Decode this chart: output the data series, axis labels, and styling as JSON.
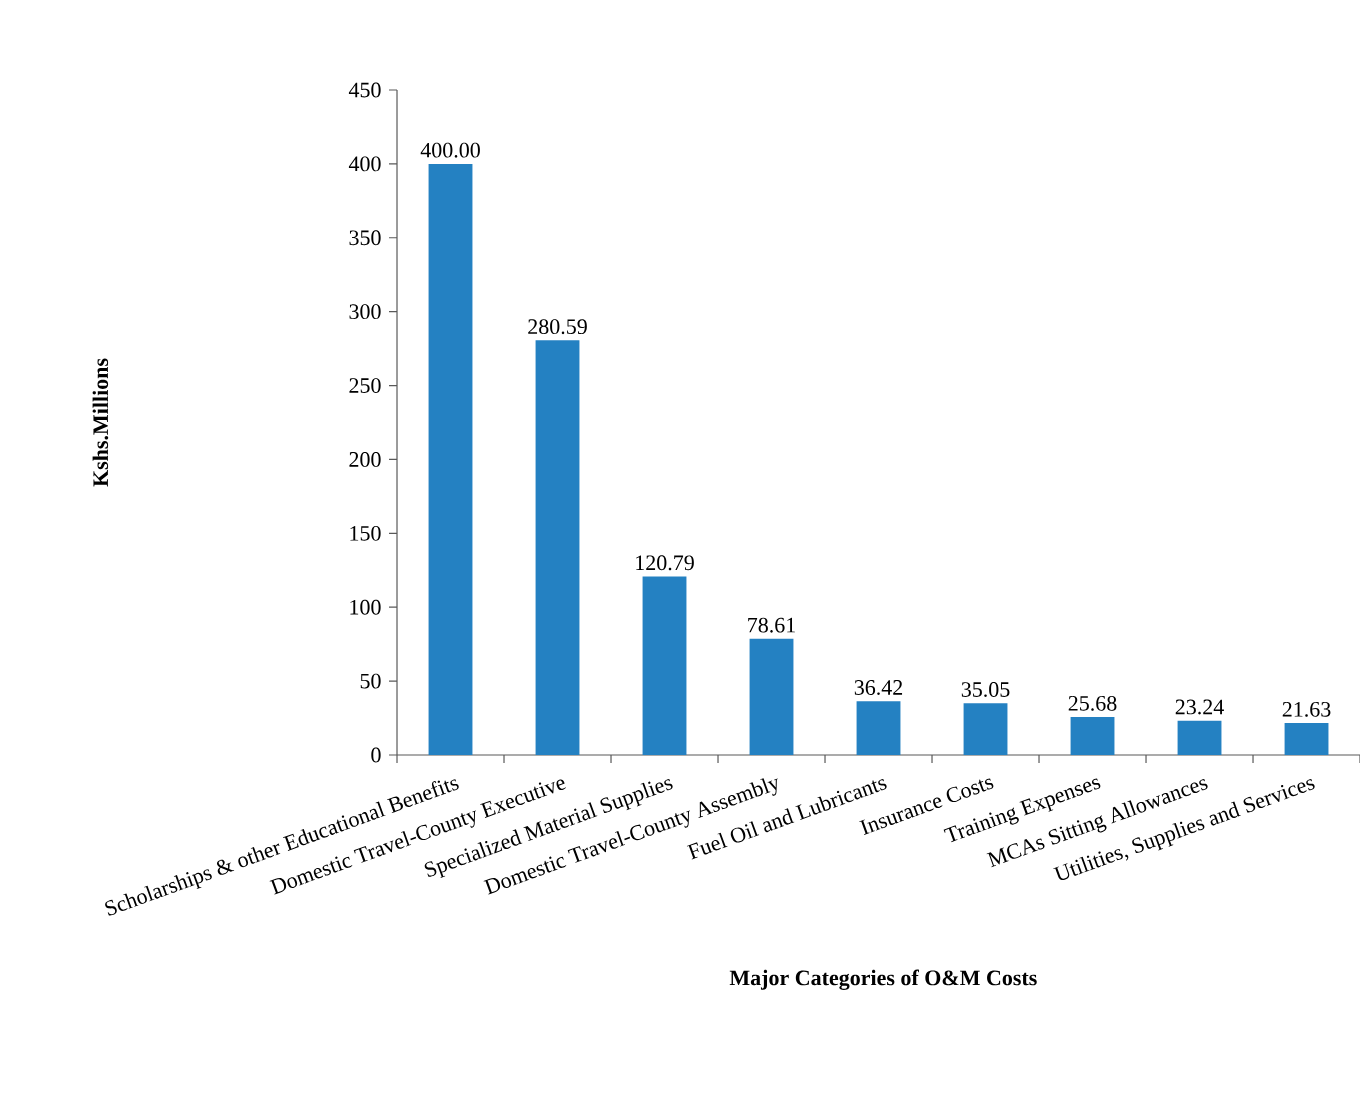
{
  "chart_data": {
    "type": "bar",
    "xlabel": "Major Categories of O&M Costs",
    "ylabel": "Kshs.Millions",
    "categories": [
      "Scholarships & other Educational Benefits",
      "Domestic Travel-County Executive",
      "Specialized Material Supplies",
      "Domestic Travel-County Assembly",
      "Fuel Oil and Lubricants",
      "Insurance Costs",
      "Training Expenses",
      "MCAs Sitting Allowances",
      "Utilities, Supplies and Services"
    ],
    "values": [
      400.0,
      280.59,
      120.79,
      78.61,
      36.42,
      35.05,
      25.68,
      23.24,
      21.63
    ],
    "value_labels": [
      "400.00",
      "280.59",
      "120.79",
      "78.61",
      "36.42",
      "35.05",
      "25.68",
      "23.24",
      "21.63"
    ],
    "color": "#2481c2",
    "ylim": [
      0,
      450
    ],
    "yticks": [
      0,
      50,
      100,
      150,
      200,
      250,
      300,
      350,
      400,
      450
    ]
  }
}
